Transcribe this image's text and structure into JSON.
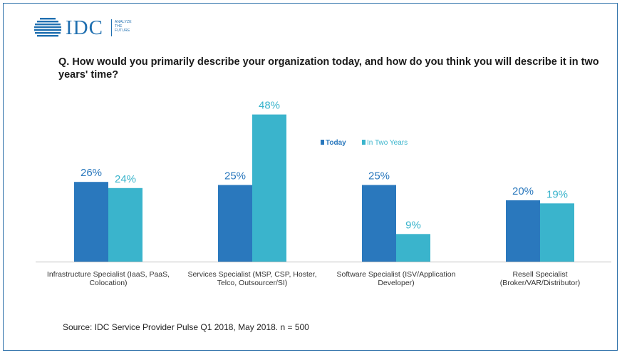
{
  "brand": {
    "logo_text": "IDC",
    "tagline": [
      "ANALYZE",
      "THE",
      "FUTURE"
    ],
    "logo_color": "#1f6fb0"
  },
  "question": "Q. How would you primarily describe your organization today, and how do you think you will describe it in two years' time?",
  "source": "Source: IDC Service Provider Pulse Q1 2018, May 2018. n = 500",
  "chart_data": {
    "type": "bar",
    "title": "",
    "xlabel": "",
    "ylabel": "",
    "ylim": [
      0,
      50
    ],
    "grid": false,
    "legend_position": "top-right",
    "categories": [
      [
        "Infrastructure Specialist (IaaS, PaaS,",
        "Colocation)"
      ],
      [
        "Services Specialist (MSP, CSP, Hoster,",
        "Telco, Outsourcer/SI)"
      ],
      [
        "Software Specialist (ISV/Application",
        "Developer)"
      ],
      [
        "Resell Specialist",
        "(Broker/VAR/Distributor)"
      ]
    ],
    "series": [
      {
        "name": "Today",
        "color": "#2a78bd",
        "values": [
          26,
          25,
          25,
          20
        ],
        "labels": [
          "26%",
          "25%",
          "25%",
          "20%"
        ]
      },
      {
        "name": "In Two Years",
        "color": "#3ab4cc",
        "values": [
          24,
          48,
          9,
          19
        ],
        "labels": [
          "24%",
          "48%",
          "9%",
          "19%"
        ]
      }
    ]
  }
}
